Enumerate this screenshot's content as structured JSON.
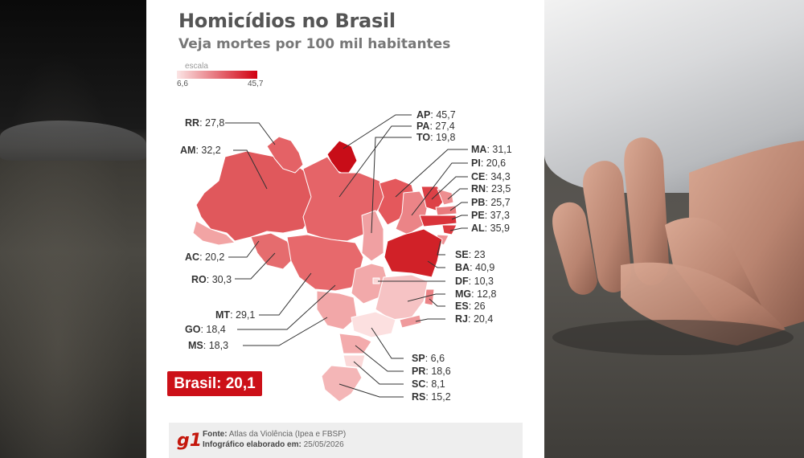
{
  "title": "Homicídios no Brasil",
  "subtitle": "Veja mortes por 100 mil habitantes",
  "scale": {
    "label": "escala",
    "min": "6,6",
    "max": "45,7",
    "color_low": "#fbe5e5",
    "color_high": "#d10010"
  },
  "states": [
    {
      "code": "RR",
      "value": "27,8"
    },
    {
      "code": "AM",
      "value": "32,2"
    },
    {
      "code": "AC",
      "value": "20,2"
    },
    {
      "code": "RO",
      "value": "30,3"
    },
    {
      "code": "MT",
      "value": "29,1"
    },
    {
      "code": "GO",
      "value": "18,4"
    },
    {
      "code": "MS",
      "value": "18,3"
    },
    {
      "code": "AP",
      "value": "45,7"
    },
    {
      "code": "PA",
      "value": "27,4"
    },
    {
      "code": "TO",
      "value": "19,8"
    },
    {
      "code": "MA",
      "value": "31,1"
    },
    {
      "code": "PI",
      "value": "20,6"
    },
    {
      "code": "CE",
      "value": "34,3"
    },
    {
      "code": "RN",
      "value": "23,5"
    },
    {
      "code": "PB",
      "value": "25,7"
    },
    {
      "code": "PE",
      "value": "37,3"
    },
    {
      "code": "AL",
      "value": "35,9"
    },
    {
      "code": "SE",
      "value": "23"
    },
    {
      "code": "BA",
      "value": "40,9"
    },
    {
      "code": "DF",
      "value": "10,3"
    },
    {
      "code": "MG",
      "value": "12,8"
    },
    {
      "code": "ES",
      "value": "26"
    },
    {
      "code": "RJ",
      "value": "20,4"
    },
    {
      "code": "SP",
      "value": "6,6"
    },
    {
      "code": "PR",
      "value": "18,6"
    },
    {
      "code": "SC",
      "value": "8,1"
    },
    {
      "code": "RS",
      "value": "15,2"
    }
  ],
  "brasil": {
    "label": "Brasil",
    "value": "20,1"
  },
  "footer": {
    "logo": "g1",
    "fonte_label": "Fonte:",
    "fonte_text": "Atlas da Violência (Ipea e FBSP)",
    "credito_label": "Infográfico elaborado em:",
    "credito_text": "25/05/2026"
  }
}
